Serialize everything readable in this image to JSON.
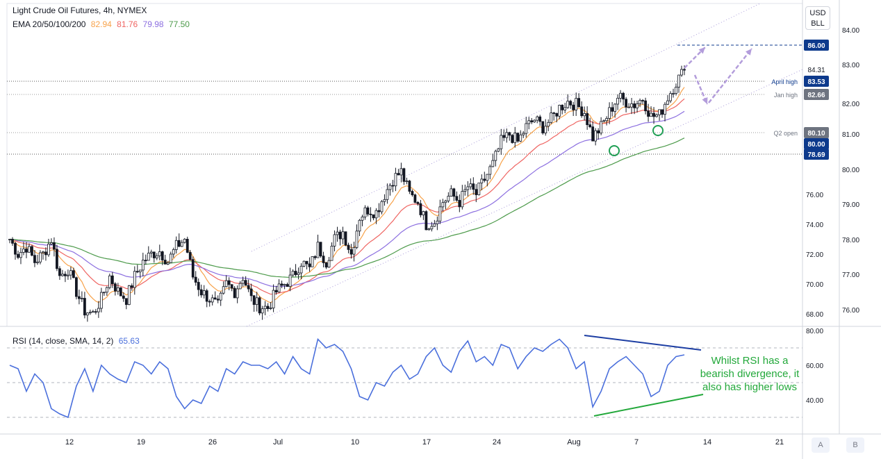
{
  "header": {
    "title": "Light Crude Oil Futures, 4h, NYMEX",
    "ema_label": "EMA 20/50/100/200",
    "ema_values": [
      {
        "value": "82.94",
        "color": "#f7a24a"
      },
      {
        "value": "81.76",
        "color": "#ef6461"
      },
      {
        "value": "79.98",
        "color": "#8c6fe0"
      },
      {
        "value": "77.50",
        "color": "#4c9a4a"
      }
    ],
    "rsi_label": "RSI (14, close, SMA, 14, 2)",
    "rsi_value": "65.63"
  },
  "currency_button": {
    "line1": "USD",
    "line2": "BLL"
  },
  "axis_buttons": [
    "A",
    "B"
  ],
  "annotation": "Whilst RSI has a bearish divergence, it also has higher lows",
  "colors": {
    "up": "#131722",
    "ema20": "#f7a24a",
    "ema50": "#ef6461",
    "ema100": "#8c6fe0",
    "ema200": "#4c9a4a",
    "rsi": "#4a6fdc",
    "arrow": "#b39ddb",
    "level_blue": "#0d3a8c",
    "level_grey": "#6e7480",
    "divergence_blue": "#1d3ea3",
    "divergence_green": "#22a83a"
  },
  "chart_data": {
    "type": "candlestick",
    "title": "Light Crude Oil Futures, 4h, NYMEX",
    "price_axis": {
      "tick_labels": [
        "84.00",
        "83.00",
        "82.00",
        "81.00",
        "80.00",
        "79.00",
        "78.00",
        "77.00",
        "76.00"
      ],
      "tick_values": [
        84,
        83,
        82,
        81,
        80,
        79,
        78,
        77,
        76
      ],
      "scale": "nonlinear"
    },
    "price_axis_left_labels": [
      "76.00",
      "74.00",
      "72.00",
      "70.00",
      "68.00"
    ],
    "x_tick_labels": [
      "12",
      "19",
      "26",
      "Jul",
      "10",
      "17",
      "24",
      "Aug",
      "7",
      "14",
      "21"
    ],
    "x_tick_dates": [
      "2023-06-12",
      "2023-06-19",
      "2023-06-26",
      "2023-07-03",
      "2023-07-10",
      "2023-07-17",
      "2023-07-24",
      "2023-08-01",
      "2023-08-07",
      "2023-08-14",
      "2023-08-21"
    ],
    "levels": [
      {
        "label": "86.00",
        "value": 86.0,
        "style": "dashed",
        "tag_color": "#0d3a8c"
      },
      {
        "label": "April high",
        "tag": "83.53",
        "value": 83.53,
        "tag_color": "#0d3a8c"
      },
      {
        "label": "Jan high",
        "tag": "82.66",
        "value": 82.66,
        "tag_color": "#6e7480"
      },
      {
        "label": "Q2 open",
        "tag": "80.10",
        "value": 80.1,
        "tag_color": "#6e7480"
      },
      {
        "tag": "80.00",
        "value": 80.0,
        "tag_color": "#0d3a8c"
      },
      {
        "tag": "78.69",
        "value": 78.69,
        "tag_color": "#0d3a8c"
      }
    ],
    "last_price": "84.31",
    "series": [
      {
        "name": "EMA 20",
        "last": 82.94
      },
      {
        "name": "EMA 50",
        "last": 81.76
      },
      {
        "name": "EMA 100",
        "last": 79.98
      },
      {
        "name": "EMA 200",
        "last": 77.5
      }
    ],
    "price_path": [
      73,
      72,
      72.5,
      71.5,
      72,
      73,
      70.5,
      71,
      69.5,
      68.2,
      68,
      69,
      70.5,
      69.5,
      69,
      70.5,
      71.5,
      72,
      72.2,
      71.5,
      72.5,
      73,
      70.5,
      69.5,
      69,
      68.5,
      70,
      69.5,
      70.5,
      69,
      68.5,
      68.4,
      69.5,
      70,
      70.5,
      71.5,
      71,
      72.5,
      71.5,
      73,
      73.5,
      72,
      74.5,
      75,
      74.8,
      76,
      77,
      77.5,
      76,
      75.5,
      74,
      74.2,
      75.5,
      76,
      75.5,
      76.5,
      76,
      77,
      78,
      79.5,
      80,
      79.5,
      80.5,
      81,
      80.5,
      81,
      81.8,
      82.2,
      82,
      81.5,
      79.8,
      80.5,
      81.5,
      82.5,
      82.2,
      82,
      82.4,
      81.2,
      81.3,
      82.5,
      83.5,
      84.3
    ],
    "rsi": {
      "label": "RSI (14, close, SMA, 14, 2)",
      "last": 65.63,
      "tick_labels": [
        "80.00",
        "60.00",
        "40.00"
      ],
      "tick_values": [
        80,
        60,
        40
      ],
      "bands": [
        70,
        50,
        30
      ],
      "values": [
        60,
        58,
        45,
        55,
        50,
        35,
        32,
        30,
        48,
        58,
        45,
        60,
        55,
        52,
        50,
        62,
        60,
        55,
        62,
        58,
        42,
        35,
        40,
        38,
        48,
        45,
        58,
        55,
        62,
        60,
        60,
        58,
        62,
        55,
        65,
        58,
        55,
        75,
        70,
        72,
        68,
        58,
        42,
        40,
        50,
        48,
        56,
        60,
        52,
        55,
        65,
        70,
        60,
        56,
        68,
        74,
        62,
        65,
        60,
        72,
        70,
        58,
        65,
        70,
        68,
        72,
        75,
        70,
        58,
        62,
        36,
        45,
        58,
        62,
        65,
        60,
        55,
        42,
        45,
        60,
        65,
        66
      ]
    }
  }
}
